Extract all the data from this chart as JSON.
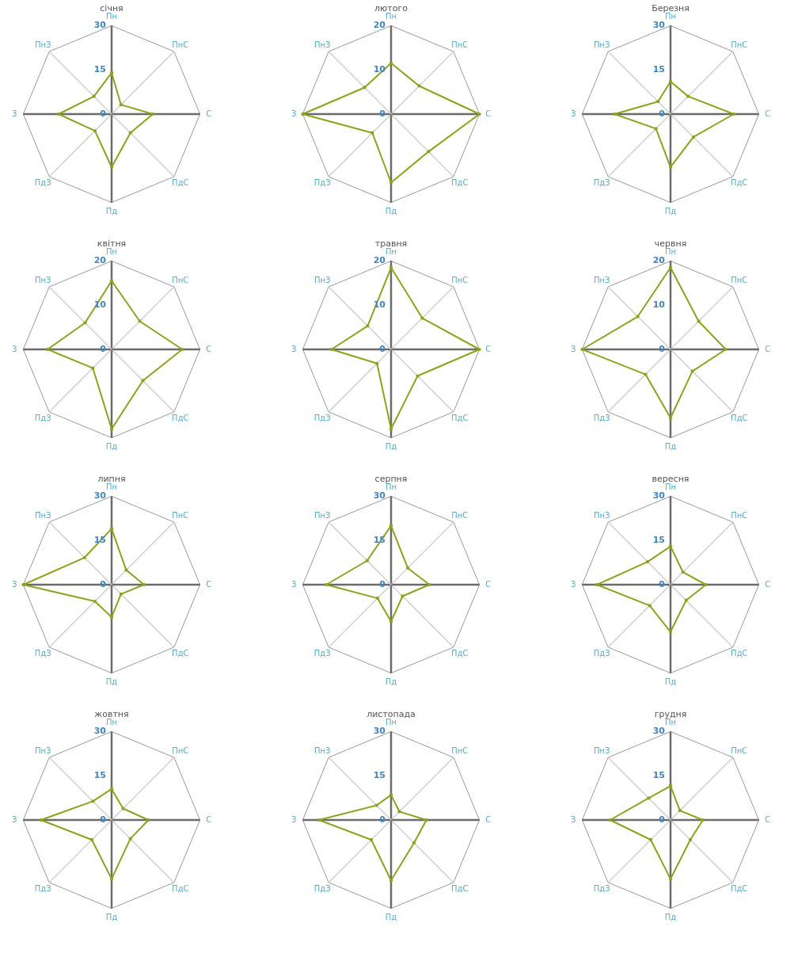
{
  "chart_data": [
    {
      "type": "radar",
      "title": "січня",
      "categories": [
        "Пн",
        "ПнС",
        "С",
        "ПдС",
        "Пд",
        "ПдЗ",
        "З",
        "ПнЗ"
      ],
      "ylim": [
        0,
        30
      ],
      "yticks": [
        0,
        15,
        30
      ],
      "marker": "circle",
      "series": [
        {
          "color": "#8aa51c",
          "values": [
            14,
            4.5,
            14,
            9,
            18,
            8,
            18,
            8.5
          ]
        }
      ]
    },
    {
      "type": "radar",
      "title": "лютого",
      "categories": [
        "Пн",
        "ПнС",
        "С",
        "ПдС",
        "Пд",
        "ПдЗ",
        "З",
        "ПнЗ"
      ],
      "ylim": [
        0,
        20
      ],
      "yticks": [
        0,
        10,
        20
      ],
      "marker": "circle",
      "series": [
        {
          "color": "#8aa51c",
          "values": [
            11.5,
            9,
            20,
            12,
            15.5,
            6,
            20,
            8.5
          ]
        }
      ]
    },
    {
      "type": "radar",
      "title": "Березня",
      "categories": [
        "Пн",
        "ПнС",
        "С",
        "ПдС",
        "Пд",
        "ПдЗ",
        "З",
        "ПнЗ"
      ],
      "ylim": [
        0,
        30
      ],
      "yticks": [
        0,
        15,
        30
      ],
      "marker": "circle",
      "series": [
        {
          "color": "#8aa51c",
          "values": [
            11,
            8.5,
            21.5,
            11,
            18,
            7,
            19,
            6
          ]
        }
      ]
    },
    {
      "type": "radar",
      "title": "квітня",
      "categories": [
        "Пн",
        "ПнС",
        "С",
        "ПдС",
        "Пд",
        "ПдЗ",
        "З",
        "ПнЗ"
      ],
      "ylim": [
        0,
        20
      ],
      "yticks": [
        0,
        10,
        20
      ],
      "marker": "circle",
      "series": [
        {
          "color": "#8aa51c",
          "values": [
            15.5,
            9,
            16,
            10,
            18,
            6,
            14.5,
            8.5
          ]
        }
      ]
    },
    {
      "type": "radar",
      "title": "травня",
      "categories": [
        "Пн",
        "ПнС",
        "С",
        "ПдС",
        "Пд",
        "ПдЗ",
        "З",
        "ПнЗ"
      ],
      "ylim": [
        0,
        20
      ],
      "yticks": [
        0,
        10,
        20
      ],
      "marker": "circle",
      "series": [
        {
          "color": "#8aa51c",
          "values": [
            18.5,
            10,
            20,
            8.5,
            18,
            4.5,
            13.5,
            7.5
          ]
        }
      ]
    },
    {
      "type": "radar",
      "title": "червня",
      "categories": [
        "Пн",
        "ПнС",
        "С",
        "ПдС",
        "Пд",
        "ПдЗ",
        "З",
        "ПнЗ"
      ],
      "ylim": [
        0,
        20
      ],
      "yticks": [
        0,
        10,
        20
      ],
      "marker": "circle",
      "series": [
        {
          "color": "#8aa51c",
          "values": [
            18.5,
            9,
            12.5,
            7,
            15.5,
            8,
            20,
            10.5
          ]
        }
      ]
    },
    {
      "type": "radar",
      "title": "липня",
      "categories": [
        "Пн",
        "ПнС",
        "С",
        "ПдС",
        "Пд",
        "ПдЗ",
        "З",
        "ПнЗ"
      ],
      "ylim": [
        0,
        30
      ],
      "yticks": [
        0,
        15,
        30
      ],
      "marker": "circle",
      "series": [
        {
          "color": "#8aa51c",
          "values": [
            19,
            7,
            11,
            4.5,
            11,
            8,
            30,
            13
          ]
        }
      ]
    },
    {
      "type": "radar",
      "title": "серпня",
      "categories": [
        "Пн",
        "ПнС",
        "С",
        "ПдС",
        "Пд",
        "ПдЗ",
        "З",
        "ПнЗ"
      ],
      "ylim": [
        0,
        30
      ],
      "yticks": [
        0,
        15,
        30
      ],
      "marker": "circle",
      "series": [
        {
          "color": "#8aa51c",
          "values": [
            20,
            8,
            13,
            5.5,
            12.5,
            6.5,
            22,
            11.5
          ]
        }
      ]
    },
    {
      "type": "radar",
      "title": "вересня",
      "categories": [
        "Пн",
        "ПнС",
        "С",
        "ПдС",
        "Пд",
        "ПдЗ",
        "З",
        "ПнЗ"
      ],
      "ylim": [
        0,
        30
      ],
      "yticks": [
        0,
        15,
        30
      ],
      "marker": "circle",
      "series": [
        {
          "color": "#8aa51c",
          "values": [
            13,
            6,
            12,
            7.5,
            16,
            10,
            25,
            11
          ]
        }
      ]
    },
    {
      "type": "radar",
      "title": "жовтня",
      "categories": [
        "Пн",
        "ПнС",
        "С",
        "ПдС",
        "Пд",
        "ПдЗ",
        "З",
        "ПнЗ"
      ],
      "ylim": [
        0,
        30
      ],
      "yticks": [
        0,
        15,
        30
      ],
      "marker": "circle",
      "series": [
        {
          "color": "#8aa51c",
          "values": [
            10.5,
            5.5,
            12.5,
            9,
            20,
            9.5,
            24,
            9
          ]
        }
      ]
    },
    {
      "type": "radar",
      "title": "листопада",
      "categories": [
        "Пн",
        "ПнС",
        "С",
        "ПдС",
        "Пд",
        "ПдЗ",
        "З",
        "ПнЗ"
      ],
      "ylim": [
        0,
        30
      ],
      "yticks": [
        0,
        15,
        30
      ],
      "marker": "circle",
      "series": [
        {
          "color": "#8aa51c",
          "values": [
            8.5,
            4,
            12,
            11,
            20.5,
            9.5,
            24.5,
            7
          ]
        }
      ]
    },
    {
      "type": "radar",
      "title": "грудня",
      "categories": [
        "Пн",
        "ПнС",
        "С",
        "ПдС",
        "Пд",
        "ПдЗ",
        "З",
        "ПнЗ"
      ],
      "ylim": [
        0,
        30
      ],
      "yticks": [
        0,
        15,
        30
      ],
      "marker": "circle",
      "series": [
        {
          "color": "#8aa51c",
          "values": [
            11.5,
            4.5,
            11,
            9.5,
            20,
            9.5,
            20.5,
            10.5
          ]
        }
      ]
    }
  ]
}
